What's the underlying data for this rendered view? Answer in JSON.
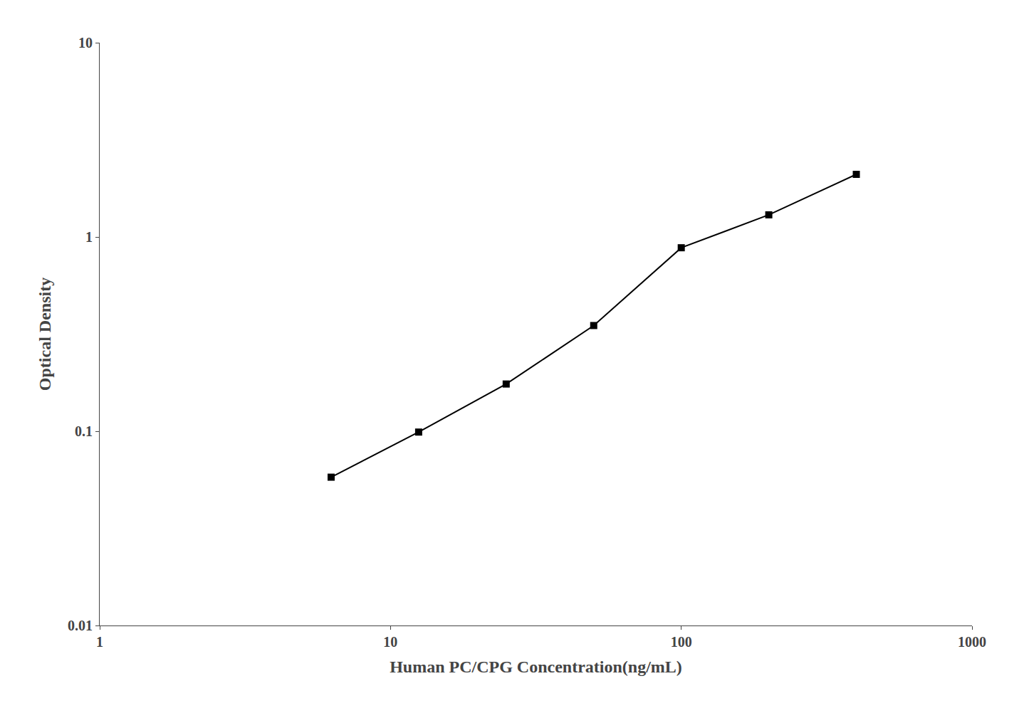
{
  "chart_data": {
    "type": "line",
    "x": [
      6.25,
      12.5,
      25,
      50,
      100,
      200,
      400
    ],
    "values": [
      0.058,
      0.099,
      0.175,
      0.35,
      0.88,
      1.3,
      2.1
    ],
    "xlabel": "Human PC/CPG Concentration(ng/mL)",
    "ylabel": "Optical Density",
    "xlim": [
      1,
      1000
    ],
    "ylim": [
      0.01,
      10
    ],
    "xticks": [
      1,
      10,
      100,
      1000
    ],
    "yticks": [
      0.01,
      0.1,
      1,
      10
    ],
    "log": true,
    "grid": false,
    "color": "#000000",
    "marker": "square",
    "line_style": "solid"
  }
}
